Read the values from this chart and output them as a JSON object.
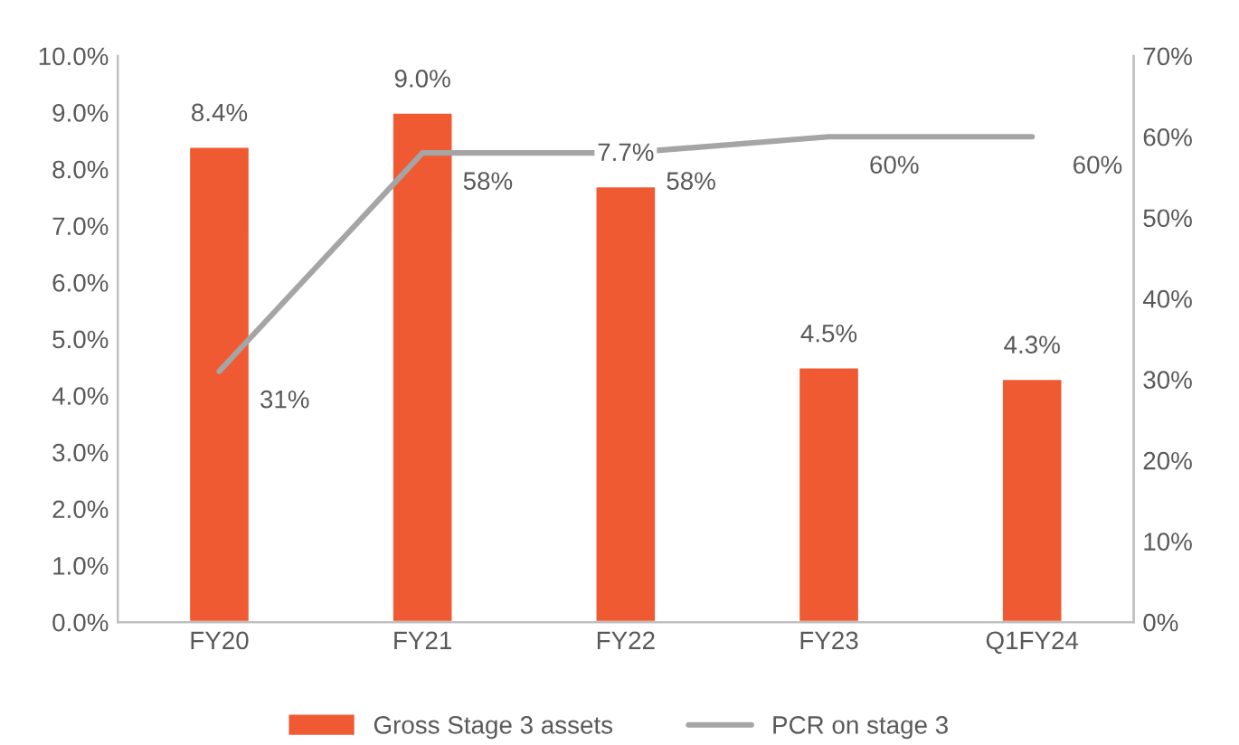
{
  "chart_data": {
    "type": "bar",
    "categories": [
      "FY20",
      "FY21",
      "FY22",
      "FY23",
      "Q1FY24"
    ],
    "series": [
      {
        "name": "Gross Stage 3 assets",
        "color": "#f05a32",
        "values": [
          8.4,
          9.0,
          7.7,
          4.5,
          4.3
        ],
        "value_labels": [
          "8.4%",
          "9.0%",
          "7.7%",
          "4.5%",
          "4.3%"
        ]
      },
      {
        "name": "PCR on stage 3",
        "type": "line",
        "axis": "y2",
        "color": "#a5a5a5",
        "values": [
          31,
          58,
          58,
          60,
          60
        ],
        "value_labels": [
          "31%",
          "58%",
          "58%",
          "60%",
          "60%"
        ]
      }
    ],
    "ylim": [
      0,
      10
    ],
    "yticks": [
      {
        "value": 0,
        "label": "0.0%"
      },
      {
        "value": 1,
        "label": "1.0%"
      },
      {
        "value": 2,
        "label": "2.0%"
      },
      {
        "value": 3,
        "label": "3.0%"
      },
      {
        "value": 4,
        "label": "4.0%"
      },
      {
        "value": 5,
        "label": "5.0%"
      },
      {
        "value": 6,
        "label": "6.0%"
      },
      {
        "value": 7,
        "label": "7.0%"
      },
      {
        "value": 8,
        "label": "8.0%"
      },
      {
        "value": 9,
        "label": "9.0%"
      },
      {
        "value": 10,
        "label": "10.0%"
      }
    ],
    "y2lim": [
      0,
      70
    ],
    "y2ticks": [
      {
        "value": 0,
        "label": "0%"
      },
      {
        "value": 10,
        "label": "10%"
      },
      {
        "value": 20,
        "label": "20%"
      },
      {
        "value": 30,
        "label": "30%"
      },
      {
        "value": 40,
        "label": "40%"
      },
      {
        "value": 50,
        "label": "50%"
      },
      {
        "value": 60,
        "label": "60%"
      },
      {
        "value": 70,
        "label": "70%"
      }
    ],
    "grid": false,
    "legend": "bottom",
    "marker": "none",
    "line_style": "solid"
  }
}
